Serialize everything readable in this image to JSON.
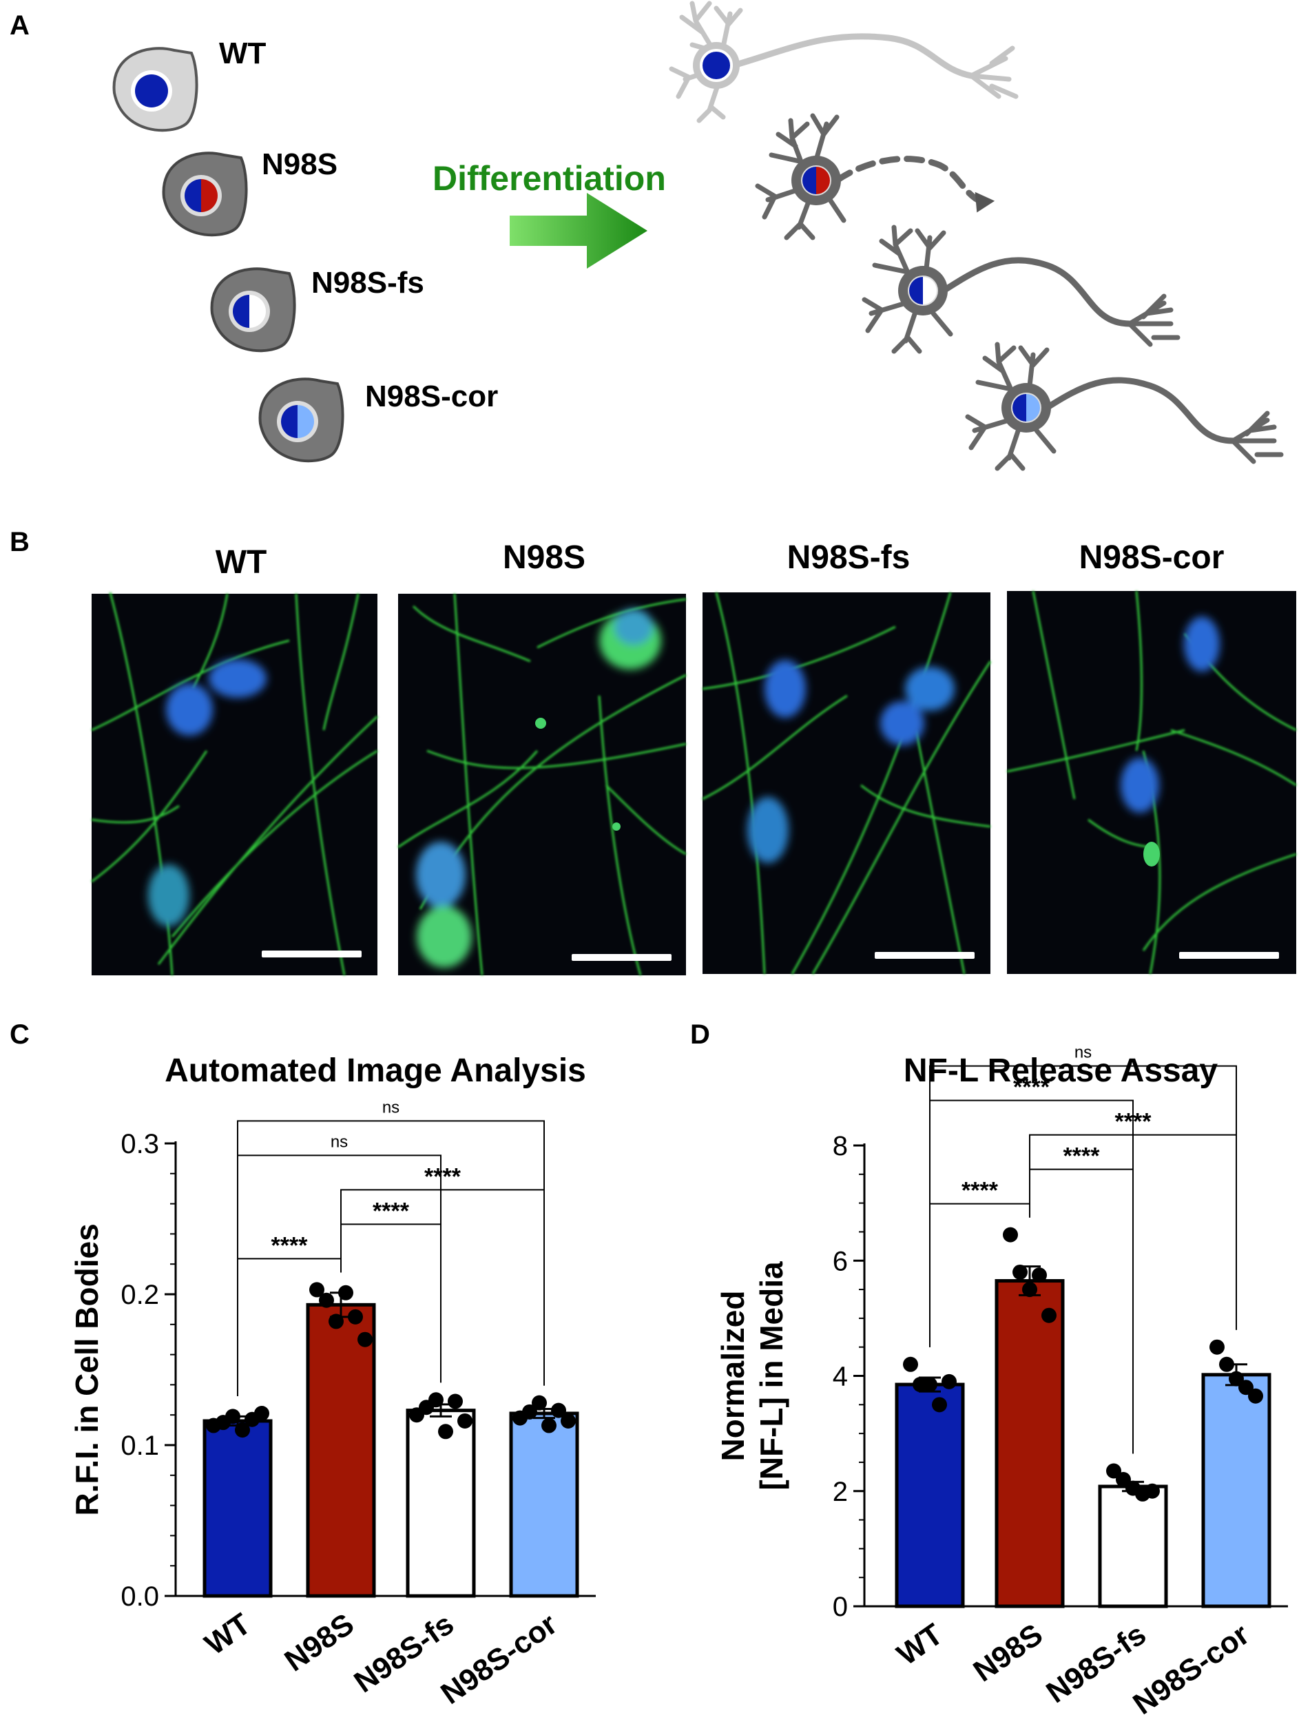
{
  "panels": {
    "a": {
      "letter": "A",
      "cells": [
        "WT",
        "N98S",
        "N98S-fs",
        "N98S-cor"
      ],
      "arrow_label": "Differentiation",
      "colors": {
        "wt_nucleus": "#0a1fae",
        "n98s_mutant": "#c0140a",
        "cor_light": "#7fb3ff",
        "soma_light": "#d6d6d6",
        "soma_dark": "#777777",
        "neuron_light": "#c4c4c4",
        "neuron_dark": "#666666",
        "arrow_green": "#1c8a16"
      }
    },
    "b": {
      "letter": "B",
      "titles": [
        "WT",
        "N98S",
        "N98S-fs",
        "N98S-cor"
      ]
    },
    "c": {
      "letter": "C"
    },
    "d": {
      "letter": "D"
    }
  },
  "chart_data": [
    {
      "type": "bar",
      "title": "Automated Image Analysis",
      "xlabel": "",
      "ylabel": "R.F.I. in Cell Bodies",
      "ylim": [
        0,
        0.3
      ],
      "yticks": [
        "0.0",
        "0.1",
        "0.2",
        "0.3"
      ],
      "categories": [
        "WT",
        "N98S",
        "N98S-fs",
        "N98S-cor"
      ],
      "values": [
        0.116,
        0.193,
        0.123,
        0.121
      ],
      "sem": [
        0.003,
        0.008,
        0.004,
        0.003
      ],
      "colors": [
        "#0a1fae",
        "#a01604",
        "#ffffff",
        "#7fb3ff"
      ],
      "points": [
        [
          0.113,
          0.115,
          0.119,
          0.11,
          0.117,
          0.121
        ],
        [
          0.203,
          0.196,
          0.182,
          0.201,
          0.185,
          0.17
        ],
        [
          0.12,
          0.125,
          0.13,
          0.109,
          0.129,
          0.116
        ],
        [
          0.118,
          0.122,
          0.128,
          0.113,
          0.123,
          0.116
        ]
      ],
      "comparisons": [
        {
          "from": 0,
          "to": 1,
          "label": "****"
        },
        {
          "from": 1,
          "to": 2,
          "label": "****"
        },
        {
          "from": 1,
          "to": 3,
          "label": "****"
        },
        {
          "from": 0,
          "to": 2,
          "label": "ns"
        },
        {
          "from": 0,
          "to": 3,
          "label": "ns"
        }
      ]
    },
    {
      "type": "bar",
      "title": "NF-L Release Assay",
      "xlabel": "",
      "ylabel": [
        "Normalized",
        "[NF-L] in Media"
      ],
      "ylim": [
        0,
        8
      ],
      "yticks": [
        "0",
        "2",
        "4",
        "6",
        "8"
      ],
      "categories": [
        "WT",
        "N98S",
        "N98S-fs",
        "N98S-cor"
      ],
      "values": [
        3.85,
        5.65,
        2.08,
        4.02
      ],
      "sem": [
        0.12,
        0.25,
        0.08,
        0.18
      ],
      "colors": [
        "#0a1fae",
        "#a01604",
        "#ffffff",
        "#7fb3ff"
      ],
      "points": [
        [
          4.2,
          3.85,
          3.85,
          3.5,
          3.9
        ],
        [
          6.45,
          5.8,
          5.5,
          5.75,
          5.05
        ],
        [
          2.35,
          2.2,
          2.05,
          1.95,
          2.0
        ],
        [
          4.5,
          4.2,
          3.95,
          3.8,
          3.65
        ]
      ],
      "comparisons": [
        {
          "from": 0,
          "to": 1,
          "label": "****"
        },
        {
          "from": 1,
          "to": 2,
          "label": "****"
        },
        {
          "from": 1,
          "to": 3,
          "label": "****"
        },
        {
          "from": 0,
          "to": 2,
          "label": "****"
        },
        {
          "from": 0,
          "to": 3,
          "label": "ns"
        }
      ]
    }
  ]
}
